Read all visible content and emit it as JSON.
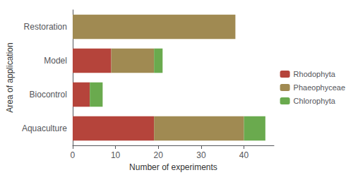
{
  "chart_data": {
    "type": "bar",
    "orientation": "horizontal",
    "stacked": true,
    "categories": [
      "Aquaculture",
      "Biocontrol",
      "Model",
      "Restoration"
    ],
    "series": [
      {
        "name": "Rhodophyta",
        "color": "#b5443b",
        "values": [
          19,
          4,
          9,
          0
        ]
      },
      {
        "name": "Phaeophyceae",
        "color": "#a08a52",
        "values": [
          21,
          0,
          10,
          38
        ]
      },
      {
        "name": "Chlorophyta",
        "color": "#6aaa4e",
        "values": [
          5,
          3,
          2,
          0
        ]
      }
    ],
    "xlabel": "Number of experiments",
    "ylabel": "Area of application",
    "xlim": [
      0,
      47
    ],
    "xticks": [
      0,
      10,
      20,
      30,
      40
    ],
    "grid": false,
    "legend": "right"
  }
}
